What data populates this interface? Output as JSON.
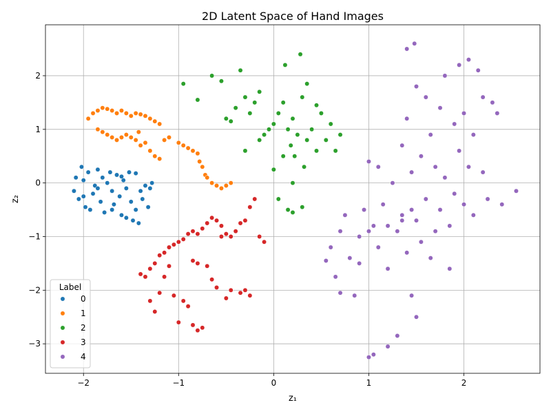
{
  "chart_data": {
    "type": "scatter",
    "title": "2D Latent Space of Hand Images",
    "xlabel": "z₁",
    "ylabel": "z₂",
    "xlim": [
      -2.4,
      2.8
    ],
    "ylim": [
      -3.55,
      2.95
    ],
    "xticks": [
      -2,
      -1,
      0,
      1,
      2
    ],
    "yticks": [
      -3,
      -2,
      -1,
      0,
      1,
      2
    ],
    "grid": true,
    "legend": {
      "title": "Label",
      "placement": "lower-left",
      "entries": [
        "0",
        "1",
        "2",
        "3",
        "4"
      ]
    },
    "series": [
      {
        "name": "0",
        "color": "#1f77b4",
        "points": [
          [
            -2.1,
            -0.15
          ],
          [
            -2.05,
            -0.3
          ],
          [
            -2.0,
            0.05
          ],
          [
            -1.98,
            -0.45
          ],
          [
            -2.02,
            0.3
          ],
          [
            -1.95,
            0.2
          ],
          [
            -1.9,
            -0.2
          ],
          [
            -1.88,
            -0.05
          ],
          [
            -1.85,
            0.25
          ],
          [
            -1.82,
            -0.35
          ],
          [
            -1.8,
            0.1
          ],
          [
            -1.78,
            -0.55
          ],
          [
            -1.75,
            0.0
          ],
          [
            -1.72,
            0.2
          ],
          [
            -1.7,
            -0.15
          ],
          [
            -1.68,
            -0.4
          ],
          [
            -1.65,
            0.15
          ],
          [
            -1.62,
            -0.25
          ],
          [
            -1.6,
            -0.6
          ],
          [
            -1.58,
            0.05
          ],
          [
            -1.55,
            -0.1
          ],
          [
            -1.52,
            0.2
          ],
          [
            -1.5,
            -0.35
          ],
          [
            -1.48,
            -0.7
          ],
          [
            -1.45,
            -0.5
          ],
          [
            -1.42,
            -0.75
          ],
          [
            -1.4,
            -0.15
          ],
          [
            -1.38,
            -0.3
          ],
          [
            -1.35,
            -0.05
          ],
          [
            -1.32,
            -0.45
          ],
          [
            -1.3,
            -0.1
          ],
          [
            -1.28,
            0.0
          ],
          [
            -2.08,
            0.1
          ],
          [
            -1.93,
            -0.5
          ],
          [
            -1.6,
            0.12
          ],
          [
            -1.45,
            0.18
          ],
          [
            -1.55,
            -0.65
          ],
          [
            -1.7,
            -0.5
          ],
          [
            -1.85,
            -0.1
          ],
          [
            -2.0,
            -0.25
          ]
        ]
      },
      {
        "name": "1",
        "color": "#ff7f0e",
        "points": [
          [
            -1.95,
            1.2
          ],
          [
            -1.9,
            1.3
          ],
          [
            -1.85,
            1.35
          ],
          [
            -1.8,
            1.4
          ],
          [
            -1.75,
            1.38
          ],
          [
            -1.7,
            1.35
          ],
          [
            -1.65,
            1.3
          ],
          [
            -1.6,
            1.35
          ],
          [
            -1.55,
            1.3
          ],
          [
            -1.5,
            1.25
          ],
          [
            -1.45,
            1.3
          ],
          [
            -1.4,
            1.28
          ],
          [
            -1.35,
            1.25
          ],
          [
            -1.3,
            1.2
          ],
          [
            -1.25,
            1.15
          ],
          [
            -1.2,
            1.1
          ],
          [
            -1.85,
            1.0
          ],
          [
            -1.8,
            0.95
          ],
          [
            -1.75,
            0.9
          ],
          [
            -1.7,
            0.85
          ],
          [
            -1.65,
            0.8
          ],
          [
            -1.6,
            0.85
          ],
          [
            -1.55,
            0.9
          ],
          [
            -1.5,
            0.85
          ],
          [
            -1.45,
            0.8
          ],
          [
            -1.42,
            0.95
          ],
          [
            -1.4,
            0.7
          ],
          [
            -1.35,
            0.75
          ],
          [
            -1.3,
            0.6
          ],
          [
            -1.25,
            0.5
          ],
          [
            -1.2,
            0.45
          ],
          [
            -1.15,
            0.8
          ],
          [
            -1.1,
            0.85
          ],
          [
            -1.0,
            0.75
          ],
          [
            -0.95,
            0.7
          ],
          [
            -0.9,
            0.65
          ],
          [
            -0.85,
            0.6
          ],
          [
            -0.8,
            0.55
          ],
          [
            -0.78,
            0.4
          ],
          [
            -0.75,
            0.3
          ],
          [
            -0.72,
            0.15
          ],
          [
            -0.7,
            0.1
          ],
          [
            -0.65,
            0.0
          ],
          [
            -0.6,
            -0.05
          ],
          [
            -0.55,
            -0.1
          ],
          [
            -0.5,
            -0.05
          ],
          [
            -0.45,
            0.0
          ]
        ]
      },
      {
        "name": "2",
        "color": "#2ca02c",
        "points": [
          [
            -0.95,
            1.85
          ],
          [
            -0.8,
            1.55
          ],
          [
            -0.65,
            2.0
          ],
          [
            -0.55,
            1.9
          ],
          [
            -0.5,
            1.2
          ],
          [
            -0.45,
            1.15
          ],
          [
            -0.4,
            1.4
          ],
          [
            -0.35,
            2.1
          ],
          [
            -0.3,
            1.6
          ],
          [
            -0.25,
            1.3
          ],
          [
            -0.2,
            1.5
          ],
          [
            -0.15,
            1.7
          ],
          [
            -0.1,
            0.9
          ],
          [
            -0.05,
            1.0
          ],
          [
            0.0,
            1.1
          ],
          [
            0.05,
            1.3
          ],
          [
            0.1,
            1.5
          ],
          [
            0.12,
            2.2
          ],
          [
            0.15,
            1.0
          ],
          [
            0.18,
            0.7
          ],
          [
            0.2,
            1.2
          ],
          [
            0.22,
            0.5
          ],
          [
            0.25,
            0.9
          ],
          [
            0.28,
            2.4
          ],
          [
            0.3,
            1.6
          ],
          [
            0.32,
            0.3
          ],
          [
            0.35,
            0.8
          ],
          [
            0.4,
            1.0
          ],
          [
            0.45,
            0.6
          ],
          [
            0.5,
            1.3
          ],
          [
            0.55,
            0.8
          ],
          [
            0.6,
            1.1
          ],
          [
            0.65,
            0.6
          ],
          [
            0.7,
            0.9
          ],
          [
            0.0,
            0.25
          ],
          [
            0.05,
            -0.3
          ],
          [
            0.1,
            0.5
          ],
          [
            0.15,
            -0.5
          ],
          [
            0.2,
            -0.55
          ],
          [
            0.3,
            -0.45
          ],
          [
            -0.3,
            0.6
          ],
          [
            -0.15,
            0.8
          ],
          [
            0.35,
            1.85
          ],
          [
            0.45,
            1.45
          ],
          [
            0.2,
            0.0
          ]
        ]
      },
      {
        "name": "3",
        "color": "#d62728",
        "points": [
          [
            -1.4,
            -1.7
          ],
          [
            -1.35,
            -1.75
          ],
          [
            -1.3,
            -1.6
          ],
          [
            -1.25,
            -1.5
          ],
          [
            -1.2,
            -1.35
          ],
          [
            -1.15,
            -1.3
          ],
          [
            -1.1,
            -1.2
          ],
          [
            -1.05,
            -1.15
          ],
          [
            -1.0,
            -1.1
          ],
          [
            -0.95,
            -1.05
          ],
          [
            -0.9,
            -0.95
          ],
          [
            -0.85,
            -0.9
          ],
          [
            -0.8,
            -0.95
          ],
          [
            -0.75,
            -0.85
          ],
          [
            -0.7,
            -0.75
          ],
          [
            -0.65,
            -0.65
          ],
          [
            -0.6,
            -0.7
          ],
          [
            -0.55,
            -0.8
          ],
          [
            -0.5,
            -0.95
          ],
          [
            -0.45,
            -1.0
          ],
          [
            -0.4,
            -0.9
          ],
          [
            -0.35,
            -0.75
          ],
          [
            -0.3,
            -0.7
          ],
          [
            -0.25,
            -0.45
          ],
          [
            -0.2,
            -0.3
          ],
          [
            -0.15,
            -1.0
          ],
          [
            -0.1,
            -1.1
          ],
          [
            -1.3,
            -2.2
          ],
          [
            -1.25,
            -2.4
          ],
          [
            -1.2,
            -2.05
          ],
          [
            -1.15,
            -1.75
          ],
          [
            -1.1,
            -1.55
          ],
          [
            -1.05,
            -2.1
          ],
          [
            -1.0,
            -2.6
          ],
          [
            -0.95,
            -2.2
          ],
          [
            -0.9,
            -2.3
          ],
          [
            -0.85,
            -2.65
          ],
          [
            -0.8,
            -2.75
          ],
          [
            -0.75,
            -2.7
          ],
          [
            -0.85,
            -1.45
          ],
          [
            -0.8,
            -1.5
          ],
          [
            -0.7,
            -1.55
          ],
          [
            -0.65,
            -1.8
          ],
          [
            -0.6,
            -1.95
          ],
          [
            -0.5,
            -2.15
          ],
          [
            -0.45,
            -2.0
          ],
          [
            -0.35,
            -2.05
          ],
          [
            -0.25,
            -2.1
          ],
          [
            -0.3,
            -2.0
          ],
          [
            -0.55,
            -1.0
          ]
        ]
      },
      {
        "name": "4",
        "color": "#9467bd",
        "points": [
          [
            0.55,
            -1.45
          ],
          [
            0.6,
            -1.2
          ],
          [
            0.65,
            -1.75
          ],
          [
            0.7,
            -0.9
          ],
          [
            0.7,
            -2.05
          ],
          [
            0.75,
            -0.6
          ],
          [
            0.8,
            -1.4
          ],
          [
            0.85,
            -2.1
          ],
          [
            0.9,
            -1.0
          ],
          [
            0.95,
            -0.5
          ],
          [
            1.0,
            0.4
          ],
          [
            1.0,
            -3.25
          ],
          [
            1.05,
            -0.8
          ],
          [
            1.05,
            -3.2
          ],
          [
            1.1,
            -1.2
          ],
          [
            1.1,
            0.3
          ],
          [
            1.15,
            -0.4
          ],
          [
            1.2,
            -1.6
          ],
          [
            1.2,
            -3.05
          ],
          [
            1.25,
            0.0
          ],
          [
            1.3,
            -0.9
          ],
          [
            1.3,
            -2.85
          ],
          [
            1.35,
            0.7
          ],
          [
            1.35,
            -0.6
          ],
          [
            1.4,
            1.2
          ],
          [
            1.4,
            -1.3
          ],
          [
            1.4,
            2.5
          ],
          [
            1.45,
            0.2
          ],
          [
            1.45,
            -2.1
          ],
          [
            1.48,
            2.6
          ],
          [
            1.5,
            1.8
          ],
          [
            1.5,
            -0.7
          ],
          [
            1.5,
            -2.5
          ],
          [
            1.55,
            0.5
          ],
          [
            1.55,
            -1.1
          ],
          [
            1.6,
            1.6
          ],
          [
            1.6,
            -0.3
          ],
          [
            1.65,
            0.9
          ],
          [
            1.65,
            -1.4
          ],
          [
            1.7,
            0.3
          ],
          [
            1.7,
            -0.9
          ],
          [
            1.75,
            1.4
          ],
          [
            1.75,
            -0.5
          ],
          [
            1.8,
            2.0
          ],
          [
            1.8,
            0.1
          ],
          [
            1.85,
            -0.8
          ],
          [
            1.85,
            -1.6
          ],
          [
            1.9,
            1.1
          ],
          [
            1.9,
            -0.2
          ],
          [
            1.95,
            2.2
          ],
          [
            1.95,
            0.6
          ],
          [
            2.0,
            -0.4
          ],
          [
            2.0,
            1.3
          ],
          [
            2.05,
            2.3
          ],
          [
            2.05,
            0.3
          ],
          [
            2.1,
            -0.6
          ],
          [
            2.1,
            0.9
          ],
          [
            2.15,
            2.1
          ],
          [
            2.2,
            0.2
          ],
          [
            2.2,
            1.6
          ],
          [
            2.25,
            -0.3
          ],
          [
            2.3,
            1.5
          ],
          [
            2.35,
            1.3
          ],
          [
            2.4,
            -0.4
          ],
          [
            2.55,
            -0.15
          ],
          [
            0.9,
            -1.5
          ],
          [
            1.0,
            -0.9
          ],
          [
            1.2,
            -0.8
          ],
          [
            1.35,
            -0.7
          ],
          [
            1.45,
            -0.5
          ]
        ]
      }
    ]
  }
}
